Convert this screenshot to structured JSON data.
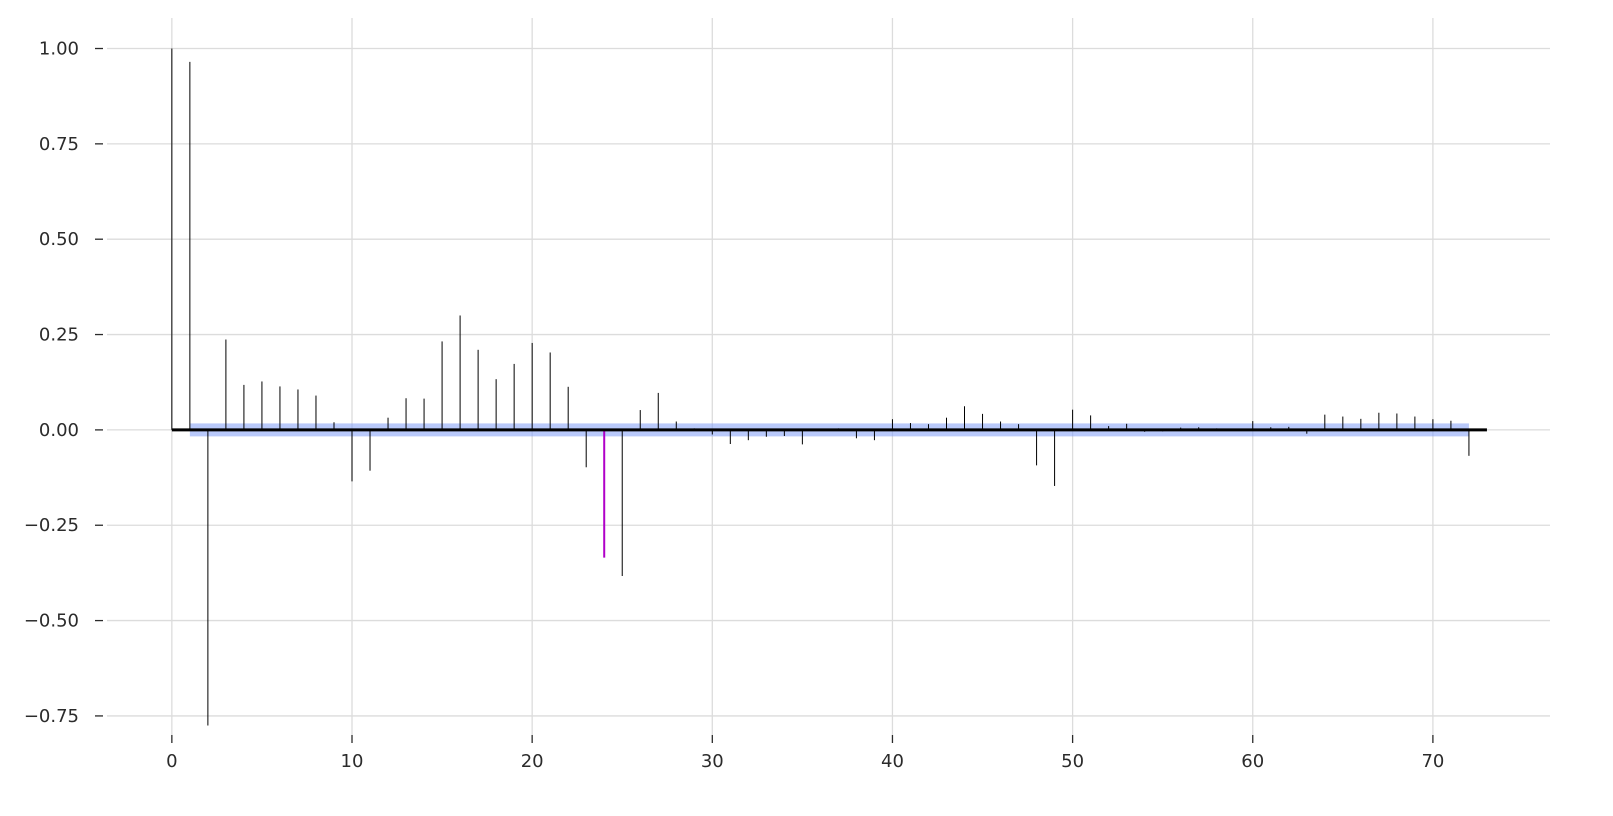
{
  "chart_data": {
    "type": "bar",
    "subtype": "stem (autocorrelation plot)",
    "title": "",
    "xlabel": "",
    "ylabel": "",
    "xlim": [
      -3.6,
      76.5
    ],
    "ylim": [
      -0.8,
      1.08
    ],
    "grid": true,
    "legend": "none",
    "x_ticks": [
      0,
      10,
      20,
      30,
      40,
      50,
      60,
      70
    ],
    "x_tick_labels": [
      "0",
      "10",
      "20",
      "30",
      "40",
      "50",
      "60",
      "70"
    ],
    "y_ticks": [
      1.0,
      0.75,
      0.5,
      0.25,
      0.0,
      -0.25,
      -0.5,
      -0.75
    ],
    "y_tick_labels": [
      "1.00",
      "0.75",
      "0.50",
      "0.25",
      "0.00",
      "−0.25",
      "−0.50",
      "−0.75"
    ],
    "lags": [
      0,
      1,
      2,
      3,
      4,
      5,
      6,
      7,
      8,
      9,
      10,
      11,
      12,
      13,
      14,
      15,
      16,
      17,
      18,
      19,
      20,
      21,
      22,
      23,
      24,
      25,
      26,
      27,
      28,
      29,
      30,
      31,
      32,
      33,
      34,
      35,
      36,
      37,
      38,
      39,
      40,
      41,
      42,
      43,
      44,
      45,
      46,
      47,
      48,
      49,
      50,
      51,
      52,
      53,
      54,
      55,
      56,
      57,
      58,
      59,
      60,
      61,
      62,
      63,
      64,
      65,
      66,
      67,
      68,
      69,
      70,
      71,
      72
    ],
    "values": [
      1.0,
      0.965,
      -0.775,
      0.237,
      0.118,
      0.127,
      0.114,
      0.106,
      0.09,
      0.02,
      -0.135,
      -0.107,
      0.032,
      0.083,
      0.082,
      0.232,
      0.3,
      0.21,
      0.133,
      0.173,
      0.228,
      0.203,
      0.113,
      -0.098,
      -0.335,
      -0.383,
      0.052,
      0.097,
      0.022,
      0.004,
      -0.012,
      -0.037,
      -0.027,
      -0.018,
      -0.016,
      -0.038,
      0.002,
      0.004,
      -0.022,
      -0.027,
      0.028,
      0.018,
      0.015,
      0.032,
      0.062,
      0.042,
      0.022,
      0.015,
      -0.093,
      -0.147,
      0.053,
      0.038,
      0.01,
      0.016,
      -0.005,
      -0.004,
      0.006,
      0.007,
      0.004,
      0.002,
      0.023,
      0.007,
      0.008,
      -0.01,
      0.04,
      0.035,
      0.029,
      0.045,
      0.043,
      0.035,
      0.028,
      0.024,
      -0.068
    ],
    "highlight_lag": 24,
    "confidence_band": {
      "from_lag": 1,
      "to_lag": 72,
      "lower": -0.017,
      "upper": 0.017
    },
    "zero_line_extent": [
      0,
      73
    ],
    "colors": {
      "stem": "#000000",
      "highlight": "#b000c8",
      "band": "#7f9cf5",
      "zero_line": "#000000",
      "grid": "#dcdcdc",
      "text": "#2b2b2b",
      "background": "#ffffff"
    }
  }
}
